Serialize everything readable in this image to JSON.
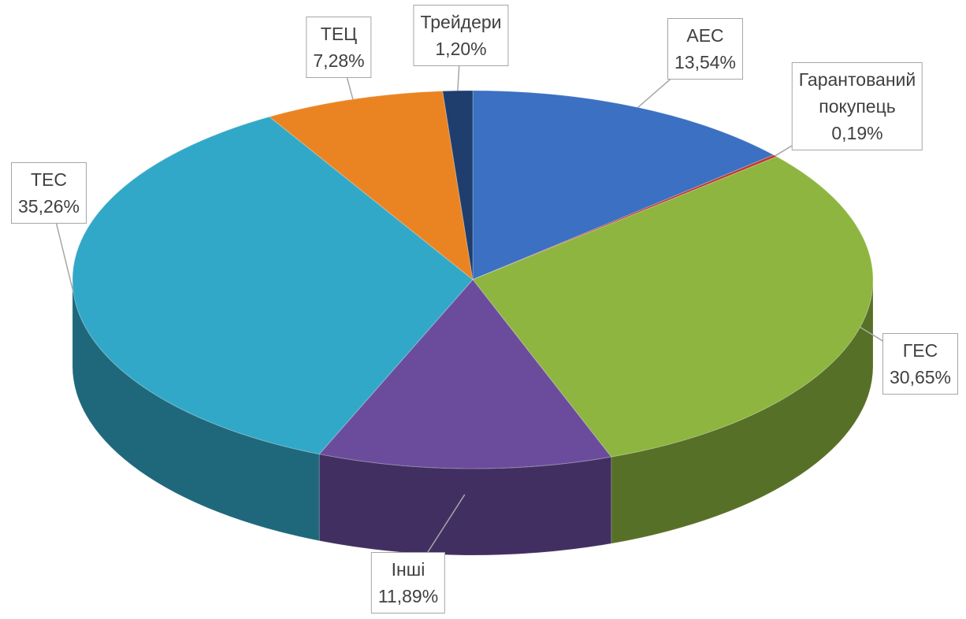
{
  "chart_data": {
    "type": "pie",
    "categories": [
      "АЕС",
      "Гарантований покупець",
      "ГЕС",
      "Інші",
      "ТЕС",
      "ТЕЦ",
      "Трейдери"
    ],
    "values": [
      13.54,
      0.19,
      30.65,
      11.89,
      35.26,
      7.28,
      1.2
    ],
    "value_labels": [
      "13,54%",
      "0,19%",
      "30,65%",
      "11,89%",
      "35,26%",
      "7,28%",
      "1,20%"
    ],
    "colors": [
      "#3b70c2",
      "#c0392b",
      "#8db53f",
      "#6b4c9c",
      "#32a8c8",
      "#ea8422",
      "#1f3e6e"
    ]
  }
}
